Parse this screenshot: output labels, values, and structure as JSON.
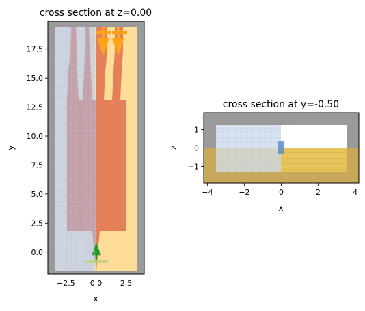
{
  "chart_data": [
    {
      "type": "other",
      "title": "cross section at z=0.00",
      "xlabel": "x",
      "ylabel": "y",
      "xlim": [
        -4.0,
        4.0
      ],
      "ylim": [
        -1.9,
        19.9
      ],
      "xticks": [
        -2.5,
        0.0,
        2.5
      ],
      "xtick_labels": [
        "−2.5",
        "0.0",
        "2.5"
      ],
      "yticks": [
        0.0,
        2.5,
        5.0,
        7.5,
        10.0,
        12.5,
        15.0,
        17.5
      ],
      "ytick_labels": [
        "0.0",
        "2.5",
        "5.0",
        "7.5",
        "10.0",
        "12.5",
        "15.0",
        "17.5"
      ],
      "colors": {
        "pml": "#9a9a9a",
        "background": "#ffdd99",
        "structure": "#e3805a",
        "mesh_region": "#c9d3e3",
        "source": "#ffa41a",
        "monitor": "#1f9b2a"
      }
    },
    {
      "type": "other",
      "title": "cross section at y=-0.50",
      "xlabel": "x",
      "ylabel": "z",
      "xlim": [
        -4.2,
        4.2
      ],
      "ylim": [
        -1.9,
        1.9
      ],
      "xticks": [
        -4,
        -2,
        0,
        2,
        4
      ],
      "xtick_labels": [
        "−4",
        "−2",
        "0",
        "2",
        "4"
      ],
      "yticks": [
        -1,
        0,
        1
      ],
      "ytick_labels": [
        "−1",
        "0",
        "1"
      ],
      "colors": {
        "pml": "#9a9a9a",
        "substrate": "#e8c55a",
        "mesh_region": "#c9d8ec",
        "monitor": "#5d8fc4"
      }
    }
  ]
}
